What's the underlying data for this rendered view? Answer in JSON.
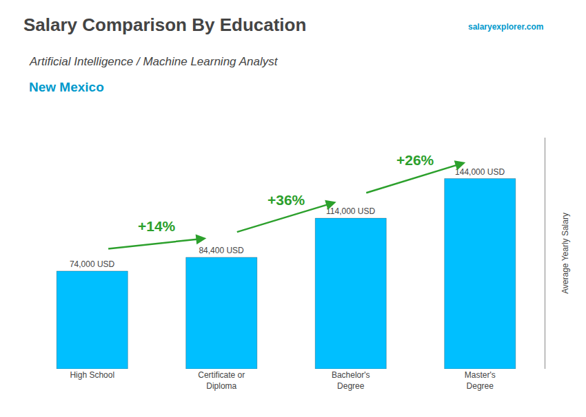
{
  "chart_data": {
    "type": "bar",
    "title": "Salary Comparison By Education",
    "subtitle": "Artificial Intelligence / Machine Learning Analyst",
    "annotations": [
      "New Mexico",
      "salaryexplorer.com"
    ],
    "categories": [
      "High School",
      "Certificate or\nDiploma",
      "Bachelor's\nDegree",
      "Master's\nDegree"
    ],
    "values": [
      74000,
      84400,
      114000,
      144000
    ],
    "value_labels": [
      "74,000 USD",
      "84,400 USD",
      "114,000 USD",
      "144,000 USD"
    ],
    "data_labels": true,
    "change_labels": [
      "+14%",
      "+36%",
      "+26%"
    ],
    "color": "#00BFFF",
    "ylabel": "Average Yearly Salary",
    "ylim": [
      0,
      175000
    ],
    "tick_labels": "x",
    "grid": false
  }
}
